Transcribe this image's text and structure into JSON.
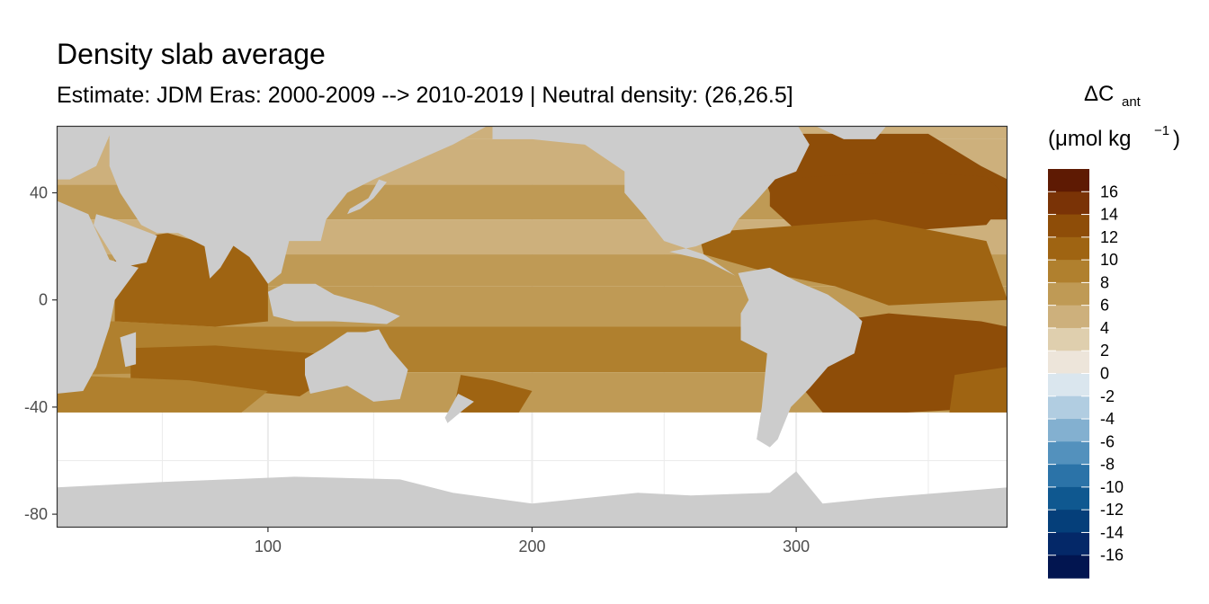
{
  "chart_data": {
    "type": "heatmap",
    "title": "Density slab average",
    "subtitle": "Estimate: JDM Eras: 2000-2009 --> 2010-2019 | Neutral density: (26,26.5]",
    "xlabel": "",
    "ylabel": "",
    "xlim": [
      20,
      380
    ],
    "ylim": [
      -85,
      65
    ],
    "x_ticks": [
      100,
      200,
      300
    ],
    "y_ticks": [
      40,
      0,
      -40,
      -80
    ],
    "grid": true,
    "colorbar": {
      "title_main": "ΔC",
      "title_sub": "ant",
      "unit_prefix": "(μmol kg",
      "unit_sup": "−1",
      "unit_suffix": ")",
      "labels": [
        16,
        14,
        12,
        10,
        8,
        6,
        4,
        2,
        0,
        -2,
        -4,
        -6,
        -8,
        -10,
        -12,
        -14,
        -16
      ],
      "colors": [
        "#5e1a03",
        "#7a3306",
        "#8e4d08",
        "#9f6412",
        "#b0802e",
        "#bf9a55",
        "#cdb07c",
        "#dfcfae",
        "#ede5da",
        "#dae6ee",
        "#b1cde1",
        "#83b0d0",
        "#5391bd",
        "#2b73a8",
        "#0f5890",
        "#053f7a",
        "#042868",
        "#021550"
      ]
    },
    "colors": {
      "land": "#cccccc",
      "no_data": "#ffffff",
      "panel_border": "#333333",
      "grid": "#ebebeb"
    }
  }
}
